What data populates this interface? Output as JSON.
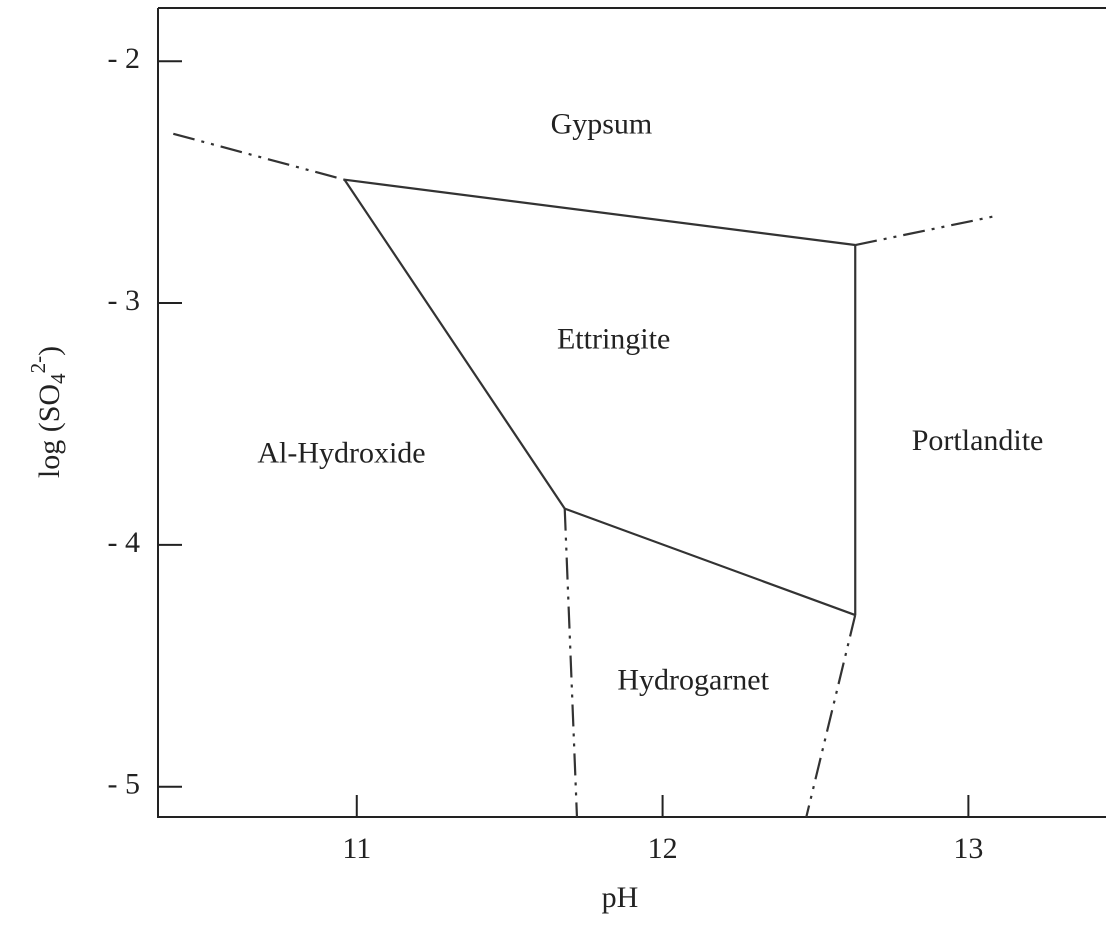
{
  "chart_data": {
    "type": "line",
    "xlabel": "pH",
    "ylabel": {
      "text": "log (SO",
      "sub": "4",
      "sup": "2-",
      "end": ")"
    },
    "xlim": [
      10.35,
      13.45
    ],
    "ylim": [
      -5.125,
      -1.78
    ],
    "xticks": [
      11,
      12,
      13
    ],
    "yticks": [
      {
        "value": -2,
        "label": "- 2"
      },
      {
        "value": -3,
        "label": "- 3"
      },
      {
        "value": -4,
        "label": "- 4"
      },
      {
        "value": -5,
        "label": "- 5"
      }
    ],
    "series": [
      {
        "style": "dashdot",
        "color": "#333333",
        "x": [
          10.4,
          10.96
        ],
        "values": [
          -2.3,
          -2.49
        ]
      },
      {
        "style": "solid",
        "color": "#333333",
        "x": [
          10.96,
          12.63
        ],
        "values": [
          -2.49,
          -2.76
        ]
      },
      {
        "style": "dashdot",
        "color": "#333333",
        "x": [
          12.63,
          13.09
        ],
        "values": [
          -2.76,
          -2.64
        ]
      },
      {
        "style": "solid",
        "color": "#333333",
        "x": [
          10.96,
          11.68
        ],
        "values": [
          -2.49,
          -3.85
        ]
      },
      {
        "style": "solid",
        "color": "#333333",
        "x": [
          11.68,
          12.63
        ],
        "values": [
          -3.85,
          -4.29
        ]
      },
      {
        "style": "solid",
        "color": "#333333",
        "x": [
          12.63,
          12.63
        ],
        "values": [
          -2.76,
          -4.29
        ]
      },
      {
        "style": "dashdot",
        "color": "#333333",
        "x": [
          11.68,
          11.72
        ],
        "values": [
          -3.85,
          -5.125
        ]
      },
      {
        "style": "dashdot",
        "color": "#333333",
        "x": [
          12.63,
          12.47
        ],
        "values": [
          -4.29,
          -5.125
        ]
      }
    ],
    "annotations": [
      {
        "text": "Gypsum",
        "x": 11.8,
        "y": -2.27
      },
      {
        "text": "Ettringite",
        "x": 11.84,
        "y": -3.16
      },
      {
        "text": "Al-Hydroxide",
        "x": 10.95,
        "y": -3.63
      },
      {
        "text": "Portlandite",
        "x": 13.03,
        "y": -3.58
      },
      {
        "text": "Hydrogarnet",
        "x": 12.1,
        "y": -4.57
      }
    ]
  }
}
